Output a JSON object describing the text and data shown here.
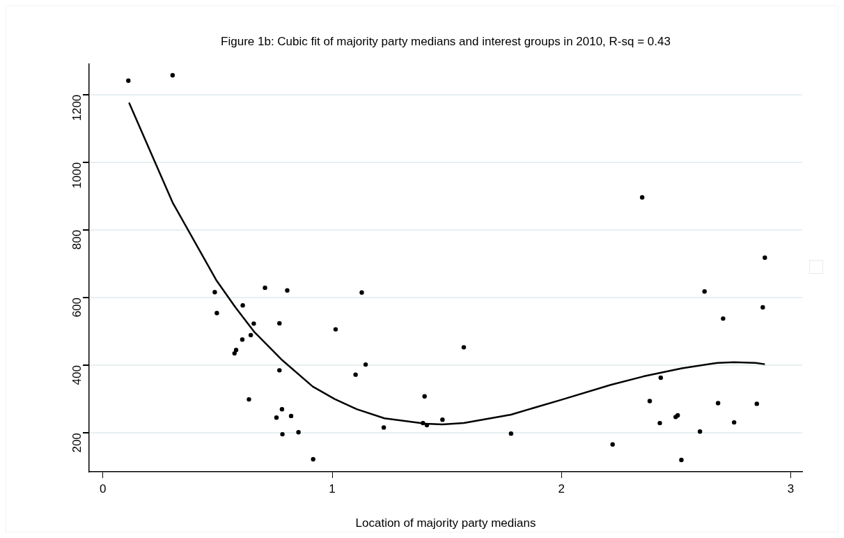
{
  "chart_data": {
    "type": "scatter",
    "title": "Figure 1b: Cubic fit of majority party medians and interest groups in 2010, R-sq = 0.43",
    "xlabel": "Location of majority party medians",
    "xlim": [
      -0.06,
      3.05
    ],
    "xticks": [
      0,
      1,
      2,
      3
    ],
    "ylim": [
      85,
      1290
    ],
    "yticks": [
      200,
      400,
      600,
      800,
      1000,
      1200
    ],
    "grid": "y",
    "legend": false,
    "series": [
      {
        "type": "scatter",
        "color": "#000000",
        "marker": "circle",
        "x": [
          0.111,
          0.304,
          0.488,
          0.497,
          0.707,
          0.804,
          1.129,
          0.61,
          0.658,
          0.77,
          1.015,
          0.645,
          0.608,
          0.581,
          0.574,
          0.77,
          1.146,
          1.102,
          0.637,
          0.781,
          0.757,
          0.821,
          0.783,
          0.853,
          0.917,
          1.225,
          1.403,
          1.396,
          1.413,
          1.481,
          1.574,
          1.78,
          2.223,
          2.385,
          2.433,
          2.429,
          2.498,
          2.507,
          2.523,
          2.604,
          2.624,
          2.683,
          2.705,
          2.753,
          2.852,
          2.878,
          2.352,
          2.887
        ],
        "values": [
          1241,
          1257,
          616,
          554,
          629,
          621,
          615,
          577,
          523,
          524,
          506,
          489,
          476,
          445,
          435,
          385,
          402,
          372,
          299,
          270,
          245,
          250,
          196,
          202,
          122,
          216,
          308,
          229,
          223,
          239,
          453,
          198,
          166,
          294,
          363,
          229,
          247,
          252,
          120,
          204,
          618,
          288,
          538,
          231,
          286,
          571,
          896,
          718
        ]
      },
      {
        "type": "line",
        "color": "#000000",
        "line_style": "solid",
        "x": [
          0.114,
          0.304,
          0.494,
          0.578,
          0.662,
          0.782,
          0.915,
          1.011,
          1.107,
          1.228,
          1.408,
          1.481,
          1.574,
          1.78,
          2.0,
          2.215,
          2.358,
          2.525,
          2.68,
          2.752,
          2.847,
          2.887
        ],
        "values": [
          1176,
          881,
          652,
          571,
          497,
          415,
          337,
          300,
          270,
          243,
          227,
          225,
          229,
          254,
          298,
          342,
          367,
          391,
          407,
          409,
          407,
          403
        ]
      }
    ]
  }
}
